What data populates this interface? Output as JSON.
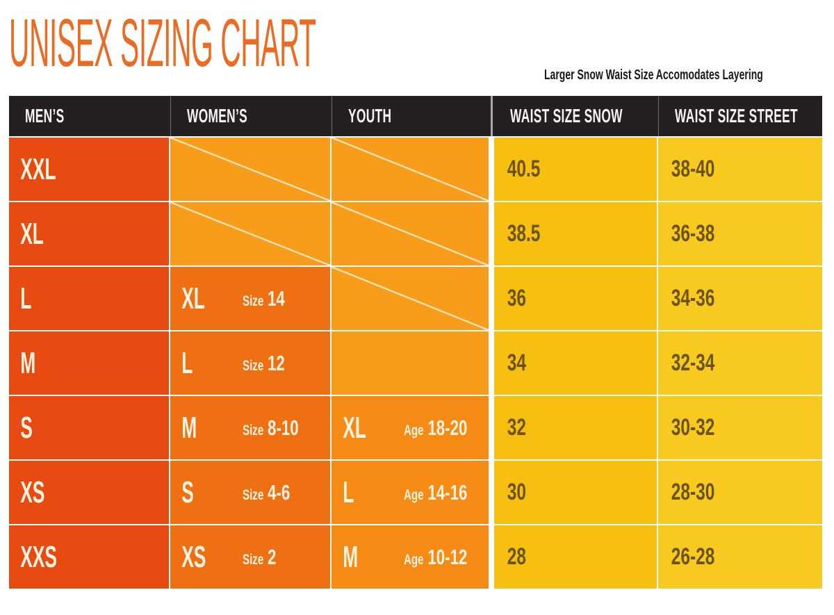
{
  "title": "UNISEX SIZING CHART",
  "note": "Larger Snow Waist Size Accomodates Layering",
  "colors": {
    "title": "#EC6B23",
    "note_text": "#191617",
    "header_bg": "#242021",
    "header_text": "#F5F3F3",
    "header_div": "#6E6A6B",
    "gap_line": "#ABA8A6",
    "mens": "#E84B12",
    "womens": "#EE7013",
    "youth": "#F58A15",
    "empty": "#F89C1C",
    "snow": "#F7C011",
    "street": "#F8C91E",
    "value_text": "#6B5418",
    "cell_text": "#FCF3E0",
    "line": "#FFFFFF"
  },
  "table": {
    "headers": [
      "MEN’S",
      "WOMEN’S",
      "YOUTH",
      "WAIST SIZE SNOW",
      "WAIST SIZE STREET"
    ],
    "rows": [
      {
        "mens": "XXL",
        "womens": {
          "type": "slashed"
        },
        "youth": {
          "type": "slashed"
        },
        "snow": "40.5",
        "street": "38-40"
      },
      {
        "mens": "XL",
        "womens": {
          "type": "slashed"
        },
        "youth": {
          "type": "slashed"
        },
        "snow": "38.5",
        "street": "36-38"
      },
      {
        "mens": "L",
        "womens": {
          "type": "size",
          "size": "XL",
          "label": "Size",
          "value": "14"
        },
        "youth": {
          "type": "slashed"
        },
        "snow": "36",
        "street": "34-36"
      },
      {
        "mens": "M",
        "womens": {
          "type": "size",
          "size": "L",
          "label": "Size",
          "value": "12"
        },
        "youth": {
          "type": "empty"
        },
        "snow": "34",
        "street": "32-34"
      },
      {
        "mens": "S",
        "womens": {
          "type": "size",
          "size": "M",
          "label": "Size",
          "value": "8-10"
        },
        "youth": {
          "type": "size",
          "size": "XL",
          "label": "Age",
          "value": "18-20"
        },
        "snow": "32",
        "street": "30-32"
      },
      {
        "mens": "XS",
        "womens": {
          "type": "size",
          "size": "S",
          "label": "Size",
          "value": "4-6"
        },
        "youth": {
          "type": "size",
          "size": "L",
          "label": "Age",
          "value": "14-16"
        },
        "snow": "30",
        "street": "28-30"
      },
      {
        "mens": "XXS",
        "womens": {
          "type": "size",
          "size": "XS",
          "label": "Size",
          "value": "2"
        },
        "youth": {
          "type": "size",
          "size": "M",
          "label": "Age",
          "value": "10-12"
        },
        "snow": "28",
        "street": "26-28"
      }
    ]
  },
  "chart_data": {
    "type": "table",
    "title": "UNISEX SIZING CHART",
    "note": "Larger Snow Waist Size Accomodates Layering",
    "columns": [
      "MEN'S",
      "WOMEN'S",
      "YOUTH",
      "WAIST SIZE SNOW",
      "WAIST SIZE STREET"
    ],
    "rows": [
      [
        "XXL",
        "n/a",
        "n/a",
        "40.5",
        "38-40"
      ],
      [
        "XL",
        "n/a",
        "n/a",
        "38.5",
        "36-38"
      ],
      [
        "L",
        "XL (Size 14)",
        "n/a",
        "36",
        "34-36"
      ],
      [
        "M",
        "L (Size 12)",
        "",
        "34",
        "32-34"
      ],
      [
        "S",
        "M (Size 8-10)",
        "XL (Age 18-20)",
        "32",
        "30-32"
      ],
      [
        "XS",
        "S (Size 4-6)",
        "L (Age 14-16)",
        "30",
        "28-30"
      ],
      [
        "XXS",
        "XS (Size 2)",
        "M (Age 10-12)",
        "28",
        "26-28"
      ]
    ]
  }
}
